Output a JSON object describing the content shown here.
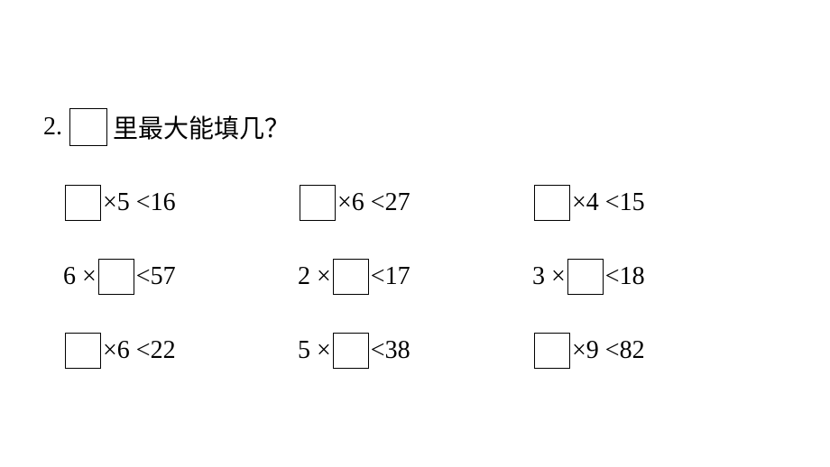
{
  "question_number": "2.",
  "question_text": "里最大能填几？",
  "box_size": 40,
  "font_size": 28,
  "colors": {
    "text": "#000000",
    "background": "#ffffff",
    "box_border": "#000000"
  },
  "grid": {
    "columns": 3,
    "rows": 3,
    "items": [
      {
        "pre": "",
        "post": " ×5 <16"
      },
      {
        "pre": "",
        "post": " ×6 <27"
      },
      {
        "pre": "",
        "post": " ×4 <15"
      },
      {
        "pre": "6 × ",
        "post": " <57"
      },
      {
        "pre": "2 × ",
        "post": " <17"
      },
      {
        "pre": "3 × ",
        "post": " <18"
      },
      {
        "pre": "",
        "post": " ×6 <22"
      },
      {
        "pre": "5 × ",
        "post": " <38"
      },
      {
        "pre": "",
        "post": " ×9 <82"
      }
    ]
  }
}
